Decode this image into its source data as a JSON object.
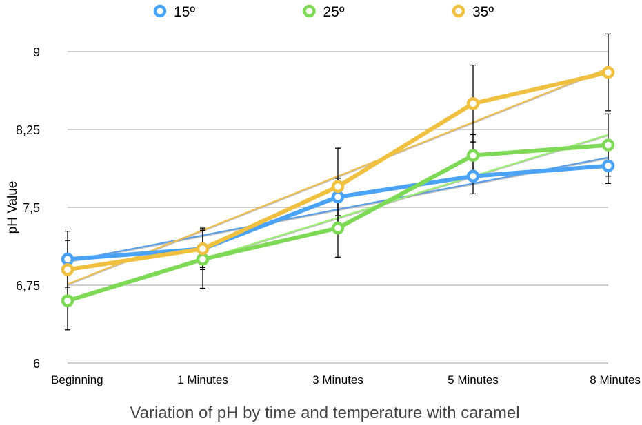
{
  "chart_data": {
    "type": "line",
    "title": "Variation of pH by time and temperature with caramel",
    "xlabel": "",
    "ylabel": "pH Value",
    "categories": [
      "Beginning",
      "1 Minutes",
      "3 Minutes",
      "5 Minutes",
      "8 Minutes"
    ],
    "ylim": [
      6,
      9
    ],
    "yticks": [
      6,
      6.75,
      7.5,
      8.25,
      9
    ],
    "ytick_labels": [
      "6",
      "6,75",
      "7,5",
      "8,25",
      "9"
    ],
    "grid": true,
    "legend_position": "top",
    "trendlines": "linear",
    "series": [
      {
        "name": "15º",
        "color": "#4aa3f5",
        "trend_color": "#5a9ee8",
        "values": [
          7.0,
          7.1,
          7.6,
          7.8,
          7.9
        ],
        "errors": [
          0.27,
          0.18,
          0.18,
          0.17,
          0.17
        ]
      },
      {
        "name": "25º",
        "color": "#7ed957",
        "trend_color": "#9af070",
        "values": [
          6.6,
          7.0,
          7.3,
          8.0,
          8.1
        ],
        "errors": [
          0.28,
          0.28,
          0.28,
          0.2,
          0.3
        ]
      },
      {
        "name": "35º",
        "color": "#f0c040",
        "trend_color": "#eebf50",
        "values": [
          6.9,
          7.1,
          7.7,
          8.5,
          8.8
        ],
        "errors": [
          0.28,
          0.2,
          0.37,
          0.37,
          0.37
        ]
      }
    ]
  }
}
